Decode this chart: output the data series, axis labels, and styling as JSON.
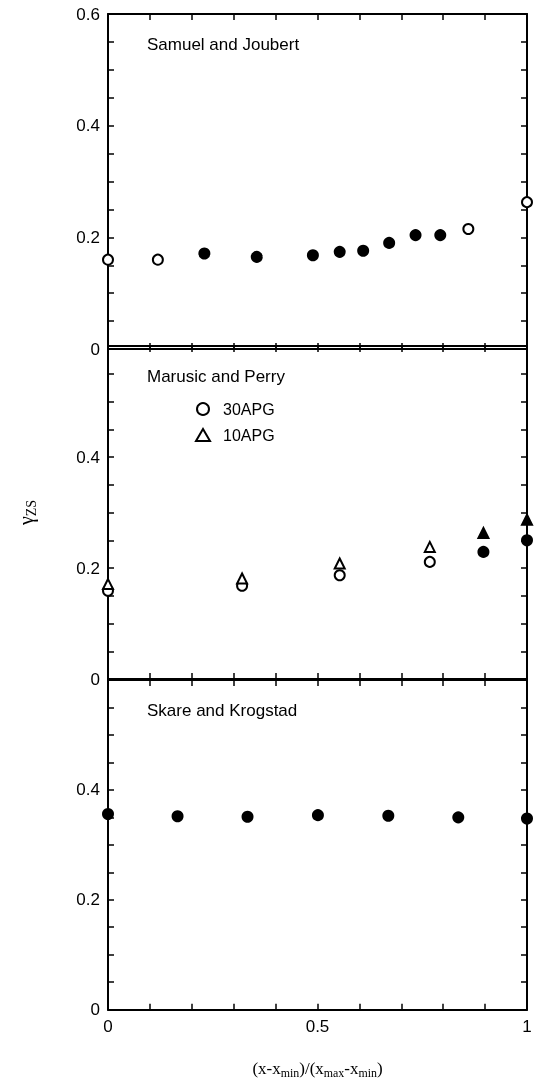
{
  "chart_data": [
    {
      "type": "scatter",
      "annotations": [
        "Samuel and Joubert"
      ],
      "xlim": [
        0,
        1
      ],
      "xticks": [
        0,
        {
          "value": 0.1,
          "label": null
        },
        {
          "value": 0.2,
          "label": null
        },
        {
          "value": 0.3,
          "label": null
        },
        {
          "value": 0.4,
          "label": null
        },
        {
          "value": 0.5,
          "label": null
        },
        {
          "value": 0.6,
          "label": null
        },
        {
          "value": 0.7,
          "label": null
        },
        {
          "value": 0.8,
          "label": null
        },
        {
          "value": 0.9,
          "label": null
        },
        {
          "value": 1,
          "label": null
        }
      ],
      "ylim": [
        0,
        0.6
      ],
      "yticks": [
        0,
        {
          "value": 0.05,
          "label": null
        },
        {
          "value": 0.1,
          "label": null
        },
        {
          "value": 0.15,
          "label": null
        },
        0.2,
        {
          "value": 0.25,
          "label": null
        },
        {
          "value": 0.3,
          "label": null
        },
        {
          "value": 0.35,
          "label": null
        },
        0.4,
        {
          "value": 0.45,
          "label": null
        },
        {
          "value": 0.5,
          "label": null
        },
        {
          "value": 0.55,
          "label": null
        },
        0.6
      ],
      "tick_labels": "y",
      "grid": false,
      "legend": false,
      "series": [
        {
          "color": "#ffffff",
          "marker": "circle",
          "x": [
            0,
            0.119,
            0.86,
            1.0
          ],
          "values": [
            0.16,
            0.16,
            0.215,
            0.263
          ]
        },
        {
          "color": "#000000",
          "marker": "circle",
          "x": [
            0.23,
            0.355,
            0.489,
            0.553,
            0.609,
            0.671,
            0.734,
            0.793
          ],
          "values": [
            0.171,
            0.165,
            0.168,
            0.174,
            0.176,
            0.19,
            0.204,
            0.204
          ]
        }
      ]
    },
    {
      "type": "scatter",
      "annotations": [
        "Marusic and Perry"
      ],
      "ylabel": "γ$_{ZS}$",
      "xlim": [
        0,
        1
      ],
      "xticks": [
        0,
        {
          "value": 0.1,
          "label": null
        },
        {
          "value": 0.2,
          "label": null
        },
        {
          "value": 0.3,
          "label": null
        },
        {
          "value": 0.4,
          "label": null
        },
        {
          "value": 0.5,
          "label": null
        },
        {
          "value": 0.6,
          "label": null
        },
        {
          "value": 0.7,
          "label": null
        },
        {
          "value": 0.8,
          "label": null
        },
        {
          "value": 0.9,
          "label": null
        },
        {
          "value": 1,
          "label": null
        }
      ],
      "ylim": [
        0,
        0.6
      ],
      "yticks": [
        0,
        {
          "value": 0.05,
          "label": null
        },
        {
          "value": 0.1,
          "label": null
        },
        {
          "value": 0.15,
          "label": null
        },
        0.2,
        {
          "value": 0.25,
          "label": null
        },
        {
          "value": 0.3,
          "label": null
        },
        {
          "value": 0.35,
          "label": null
        },
        0.4,
        {
          "value": 0.45,
          "label": null
        },
        {
          "value": 0.5,
          "label": null
        },
        {
          "value": 0.55,
          "label": null
        },
        {
          "value": 0.6,
          "label": null
        }
      ],
      "tick_labels": "y",
      "grid": false,
      "legend": "top left",
      "series": [
        {
          "name": "30APG",
          "color": "#ffffff",
          "marker": "circle",
          "x": [
            0,
            0.32,
            0.553,
            0.768
          ],
          "values": [
            0.159,
            0.168,
            0.187,
            0.211
          ]
        },
        {
          "name": "10APG",
          "color": "#ffffff",
          "marker": "triangle",
          "x": [
            0,
            0.32,
            0.553,
            0.768
          ],
          "values": [
            0.171,
            0.181,
            0.208,
            0.238
          ]
        },
        {
          "color": "#000000",
          "marker": "circle",
          "x": [
            0.896,
            1.0
          ],
          "values": [
            0.229,
            0.25
          ]
        },
        {
          "color": "#000000",
          "marker": "triangle",
          "x": [
            0.896,
            1.0
          ],
          "values": [
            0.263,
            0.287
          ]
        }
      ]
    },
    {
      "type": "scatter",
      "annotations": [
        "Skare and Krogstad"
      ],
      "xlabel": "(x-x$_{min}$)/(x$_{max}$-x$_{min}$)",
      "xlim": [
        0,
        1
      ],
      "xticks": [
        0,
        {
          "value": 0.1,
          "label": null
        },
        {
          "value": 0.2,
          "label": null
        },
        {
          "value": 0.3,
          "label": null
        },
        {
          "value": 0.4,
          "label": null
        },
        0.5,
        {
          "value": 0.6,
          "label": null
        },
        {
          "value": 0.7,
          "label": null
        },
        {
          "value": 0.8,
          "label": null
        },
        {
          "value": 0.9,
          "label": null
        },
        1
      ],
      "ylim": [
        0,
        0.6
      ],
      "yticks": [
        0,
        {
          "value": 0.05,
          "label": null
        },
        {
          "value": 0.1,
          "label": null
        },
        {
          "value": 0.15,
          "label": null
        },
        0.2,
        {
          "value": 0.25,
          "label": null
        },
        {
          "value": 0.3,
          "label": null
        },
        {
          "value": 0.35,
          "label": null
        },
        0.4,
        {
          "value": 0.45,
          "label": null
        },
        {
          "value": 0.5,
          "label": null
        },
        {
          "value": 0.55,
          "label": null
        },
        {
          "value": 0.6,
          "label": null
        }
      ],
      "grid": false,
      "legend": false,
      "series": [
        {
          "color": "#000000",
          "marker": "circle",
          "x": [
            0,
            0.166,
            0.333,
            0.501,
            0.669,
            0.836,
            1.0
          ],
          "values": [
            0.356,
            0.352,
            0.351,
            0.354,
            0.353,
            0.35,
            0.348
          ]
        }
      ]
    }
  ]
}
